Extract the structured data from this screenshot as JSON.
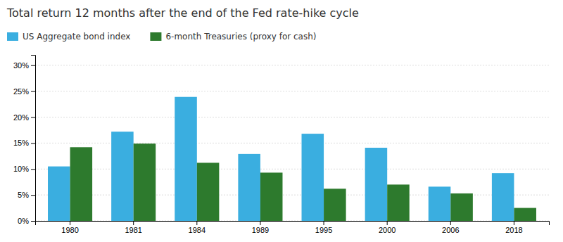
{
  "chart_data": {
    "type": "bar",
    "title": "Total return 12 months after the end of the Fed rate-hike cycle",
    "categories": [
      "1980",
      "1981",
      "1984",
      "1989",
      "1995",
      "2000",
      "2006",
      "2018"
    ],
    "series": [
      {
        "name": "US Aggregate bond index",
        "color": "#3aaee0",
        "values": [
          10.5,
          17.2,
          23.9,
          12.9,
          16.8,
          14.1,
          6.6,
          9.2
        ]
      },
      {
        "name": "6-month Treasuries (proxy for cash)",
        "color": "#2d7a2d",
        "values": [
          14.2,
          14.9,
          11.2,
          9.3,
          6.2,
          7.0,
          5.3,
          2.5
        ]
      }
    ],
    "ylim": [
      0,
      32
    ],
    "yticks": [
      {
        "value": 0,
        "label": "0%"
      },
      {
        "value": 5,
        "label": "5%"
      },
      {
        "value": 10,
        "label": "10%"
      },
      {
        "value": 15,
        "label": "15%"
      },
      {
        "value": 20,
        "label": "20%"
      },
      {
        "value": 25,
        "label": "25%"
      },
      {
        "value": 30,
        "label": "30%"
      }
    ],
    "grid": true
  }
}
